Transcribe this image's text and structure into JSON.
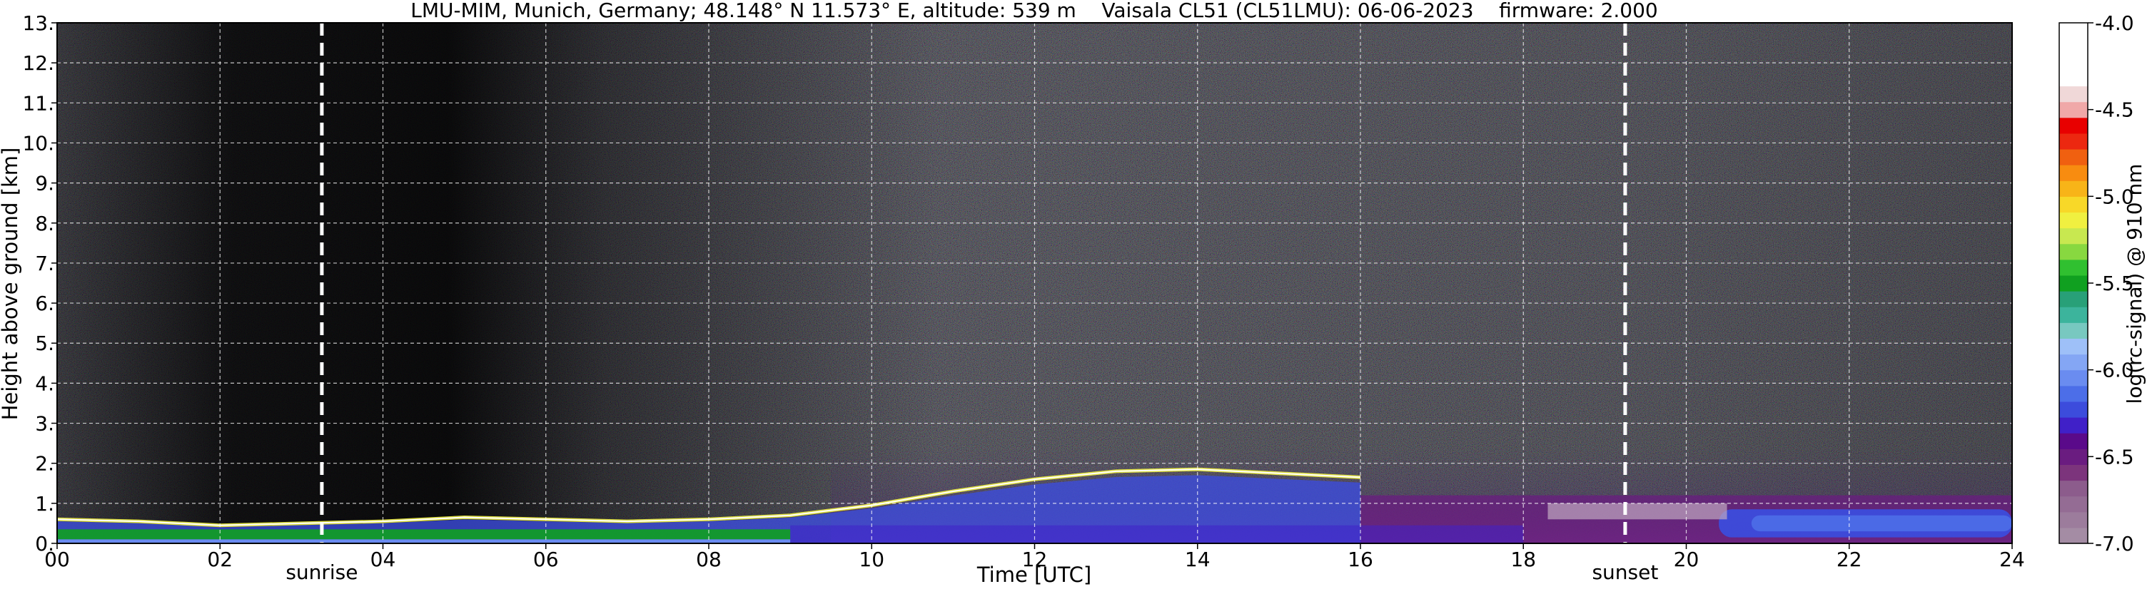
{
  "chart_data": {
    "type": "heatmap",
    "title": "LMU-MIM, Munich, Germany; 48.148° N 11.573° E, altitude: 539 m    Vaisala CL51 (CL51LMU): 06-06-2023    firmware: 2.000",
    "xlabel": "Time [UTC]",
    "ylabel": "Height above ground [km]",
    "xlim": [
      0,
      24
    ],
    "ylim": [
      0,
      13
    ],
    "x_ticks": [
      {
        "value": 0,
        "label": "00"
      },
      {
        "value": 2,
        "label": "02"
      },
      {
        "value": 4,
        "label": "04"
      },
      {
        "value": 6,
        "label": "06"
      },
      {
        "value": 8,
        "label": "08"
      },
      {
        "value": 10,
        "label": "10"
      },
      {
        "value": 12,
        "label": "12"
      },
      {
        "value": 14,
        "label": "14"
      },
      {
        "value": 16,
        "label": "16"
      },
      {
        "value": 18,
        "label": "18"
      },
      {
        "value": 20,
        "label": "20"
      },
      {
        "value": 22,
        "label": "22"
      },
      {
        "value": 24,
        "label": "24"
      }
    ],
    "y_ticks": [
      {
        "value": 0,
        "label": "0."
      },
      {
        "value": 1,
        "label": "1."
      },
      {
        "value": 2,
        "label": "2."
      },
      {
        "value": 3,
        "label": "3."
      },
      {
        "value": 4,
        "label": "4."
      },
      {
        "value": 5,
        "label": "5."
      },
      {
        "value": 6,
        "label": "6."
      },
      {
        "value": 7,
        "label": "7."
      },
      {
        "value": 8,
        "label": "8."
      },
      {
        "value": 9,
        "label": "9."
      },
      {
        "value": 10,
        "label": "10."
      },
      {
        "value": 11,
        "label": "11."
      },
      {
        "value": 12,
        "label": "12."
      },
      {
        "value": 13,
        "label": "13."
      }
    ],
    "grid": true,
    "events": [
      {
        "label": "sunrise",
        "time": 3.25
      },
      {
        "label": "sunset",
        "time": 19.25
      }
    ],
    "boundary_layer_top_km": [
      [
        0,
        0.6
      ],
      [
        1,
        0.55
      ],
      [
        2,
        0.45
      ],
      [
        3,
        0.5
      ],
      [
        4,
        0.55
      ],
      [
        5,
        0.65
      ],
      [
        6,
        0.6
      ],
      [
        7,
        0.55
      ],
      [
        8,
        0.6
      ],
      [
        9,
        0.7
      ],
      [
        10,
        0.95
      ],
      [
        11,
        1.3
      ],
      [
        12,
        1.6
      ],
      [
        13,
        1.8
      ],
      [
        14,
        1.85
      ],
      [
        15,
        1.75
      ],
      [
        16,
        1.65
      ]
    ],
    "colorbar": {
      "label": "log(rc-signal) @ 910 nm",
      "range": [
        -7.0,
        -4.0
      ],
      "ticks": [
        {
          "value": -4.0,
          "label": "-4.0"
        },
        {
          "value": -4.5,
          "label": "-4.5"
        },
        {
          "value": -5.0,
          "label": "-5.0"
        },
        {
          "value": -5.5,
          "label": "-5.5"
        },
        {
          "value": -6.0,
          "label": "-6.0"
        },
        {
          "value": -6.5,
          "label": "-6.5"
        },
        {
          "value": -7.0,
          "label": "-7.0"
        }
      ],
      "colors_low_to_high": [
        "#a48ca4",
        "#9c7c9c",
        "#946c94",
        "#8c5c8c",
        "#7c347c",
        "#6a1c80",
        "#5a0a8a",
        "#4020c8",
        "#3c4cdc",
        "#4c6ee8",
        "#6a8cf0",
        "#84a6f4",
        "#9ec0f8",
        "#78c8c0",
        "#3cb49c",
        "#28a078",
        "#10a020",
        "#30c030",
        "#88d840",
        "#c8e850",
        "#f0f040",
        "#f8d828",
        "#f8b418",
        "#f88c10",
        "#f06010",
        "#ec2810",
        "#e80000",
        "#f0a8a8",
        "#f0d8d8",
        "#ffffff",
        "#ffffff",
        "#ffffff",
        "#ffffff"
      ]
    }
  }
}
